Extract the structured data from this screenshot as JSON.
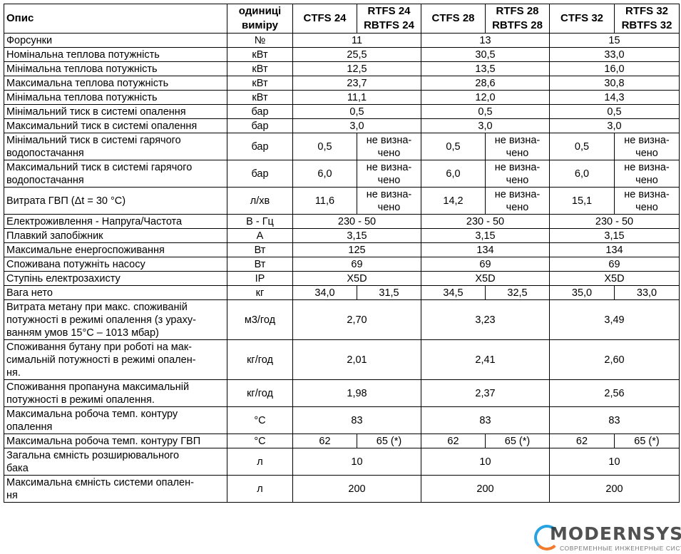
{
  "header": {
    "description": "Опис",
    "units": "одиниці\nвиміру",
    "models": [
      "CTFS 24",
      "RTFS 24\nRBTFS 24",
      "CTFS 28",
      "RTFS 28\nRBTFS 28",
      "CTFS 32",
      "RTFS 32\nRBTFS 32"
    ]
  },
  "rows": [
    {
      "label": "Форсунки",
      "unit": "№",
      "values": [
        "11",
        "13",
        "15"
      ]
    },
    {
      "label": "Номінальна теплова потужність",
      "unit": "кВт",
      "values": [
        "25,5",
        "30,5",
        "33,0"
      ]
    },
    {
      "label": "Мінімальна теплова потужність",
      "unit": "кВт",
      "values": [
        "12,5",
        "13,5",
        "16,0"
      ]
    },
    {
      "label": "Максимальна теплова потужність",
      "unit": "кВт",
      "values": [
        "23,7",
        "28,6",
        "30,8"
      ]
    },
    {
      "label": "Мінімальна теплова потужність",
      "unit": "кВт",
      "values": [
        "11,1",
        "12,0",
        "14,3"
      ]
    },
    {
      "label": "Мінімальний тиск в системі опалення",
      "unit": "бар",
      "values": [
        "0,5",
        "0,5",
        "0,5"
      ]
    },
    {
      "label": "Максимальний тиск в системі опалення",
      "unit": "бар",
      "values": [
        "3,0",
        "3,0",
        "3,0"
      ]
    },
    {
      "label": "Мінімальний тиск в системі гарячого\nводопостачання",
      "unit": "бар",
      "values": [
        "0,5",
        "не визна-\nчено",
        "0,5",
        "не визна-\nчено",
        "0,5",
        "не визна-\nчено"
      ]
    },
    {
      "label": "Максимальний тиск в системі гарячого\nводопостачання",
      "unit": "бар",
      "values": [
        "6,0",
        "не визна-\nчено",
        "6,0",
        "не визна-\nчено",
        "6,0",
        "не визна-\nчено"
      ]
    },
    {
      "label": "Витрата ГВП (Δt = 30 °C)",
      "unit": "л/хв",
      "values": [
        "11,6",
        "не визна-\nчено",
        "14,2",
        "не визна-\nчено",
        "15,1",
        "не визна-\nчено"
      ]
    },
    {
      "label": "Електроживлення - Напруга/Частота",
      "unit": "В - Гц",
      "values": [
        "230 - 50",
        "230 - 50",
        "230 - 50"
      ]
    },
    {
      "label": "Плавкий запобіжник",
      "unit": "А",
      "values": [
        "3,15",
        "3,15",
        "3,15"
      ]
    },
    {
      "label": "Максимальне енергоспоживання",
      "unit": "Вт",
      "values": [
        "125",
        "134",
        "134"
      ]
    },
    {
      "label": "Споживана потужніть насосу",
      "unit": "Вт",
      "values": [
        "69",
        "69",
        "69"
      ]
    },
    {
      "label": "Ступінь електрозахисту",
      "unit": "IP",
      "values": [
        "X5D",
        "X5D",
        "X5D"
      ]
    },
    {
      "label": "Вага нето",
      "unit": "кг",
      "values": [
        "34,0",
        "31,5",
        "34,5",
        "32,5",
        "35,0",
        "33,0"
      ]
    },
    {
      "label": "Витрата метану при макс. споживаній\nпотужності в режимі опалення (з ураху-\nванням умов 15°C – 1013 мбар)",
      "unit": "м3/год",
      "values": [
        "2,70",
        "3,23",
        "3,49"
      ]
    },
    {
      "label": "Споживання бутану при роботі на мак-\nсимальній потужності в режимі опален-\nня.",
      "unit": "кг/год",
      "values": [
        "2,01",
        "2,41",
        "2,60"
      ]
    },
    {
      "label": "Споживання пропануна максимальній\nпотужності в режимі опалення.",
      "unit": "кг/год",
      "values": [
        "1,98",
        "2,37",
        "2,56"
      ]
    },
    {
      "label": "Максимальна робоча темп. контуру\nопалення",
      "unit": "°C",
      "values": [
        "83",
        "83",
        "83"
      ]
    },
    {
      "label": "Максимальна робоча темп. контуру ГВП",
      "unit": "°C",
      "values": [
        "62",
        "65 (*)",
        "62",
        "65 (*)",
        "62",
        "65 (*)"
      ]
    },
    {
      "label": "Загальна ємність розширювального\nбака",
      "unit": "л",
      "values": [
        "10",
        "10",
        "10"
      ]
    },
    {
      "label": "Максимальна ємність системи опален-\nня",
      "unit": "л",
      "values": [
        "200",
        "200",
        "200"
      ]
    }
  ],
  "watermark": {
    "brand": "MODERNSYS",
    "tagline": "СОВРЕМЕННЫЕ ИНЖЕНЕРНЫЕ СИСТЕМЫ"
  }
}
